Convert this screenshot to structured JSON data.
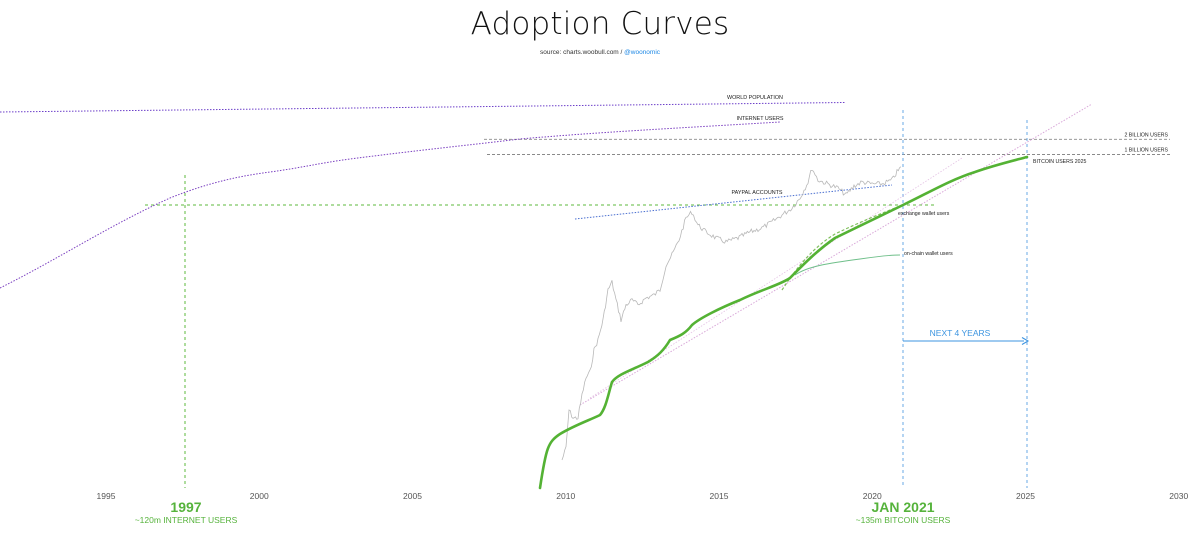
{
  "header": {
    "title": "Adoption Curves",
    "source_prefix": "source: charts.woobull.com / ",
    "source_handle": "@woonomic"
  },
  "colors": {
    "bitcoin_users": "#54b234",
    "world_population": "#6c3fc9",
    "internet_users": "#7a3fc0",
    "paypal": "#4a6fd0",
    "reference_guides": "#8a8a8a",
    "jan_2021_line": "#6aa9e6",
    "year_1997_line": "#5cb83e",
    "next_4_years": "#3d95e0",
    "btc_price": "#b8b8b8",
    "onchain": "#6fbf8a",
    "exchange_wallet": "#7dbf5a",
    "trend": "#d9a8d9"
  },
  "chart_data": {
    "type": "line",
    "xlabel": "",
    "ylabel": "",
    "x_ticks": [
      "1995",
      "2000",
      "2005",
      "2010",
      "2015",
      "2020",
      "2025",
      "2030"
    ],
    "xlim": [
      1993.5,
      2030
    ],
    "y_scale": "log",
    "grid": false,
    "series": [
      {
        "name": "WORLD POPULATION",
        "x": [
          1993.5,
          2019
        ],
        "y": [
          5600,
          7700
        ]
      },
      {
        "name": "INTERNET USERS",
        "x": [
          1993.5,
          1996,
          1998,
          2000,
          2003,
          2005,
          2008,
          2010,
          2012,
          2015,
          2018,
          2020
        ],
        "y": [
          40,
          95,
          170,
          300,
          460,
          620,
          900,
          1100,
          1400,
          1900,
          2500,
          3000
        ]
      },
      {
        "name": "PAYPAL ACCOUNTS",
        "x": [
          2010,
          2020
        ],
        "y": [
          60,
          150
        ]
      },
      {
        "name": "BITCOIN USERS 2025",
        "x": [
          2009,
          2009.5,
          2010,
          2011,
          2011.5,
          2012,
          2013,
          2014,
          2015,
          2016,
          2017,
          2018,
          2019,
          2020,
          2021,
          2022,
          2023,
          2024,
          2025
        ],
        "y": [
          0.002,
          0.01,
          0.03,
          0.05,
          0.3,
          0.45,
          0.9,
          1.6,
          2.6,
          3.8,
          6,
          12,
          22,
          38,
          135,
          300,
          520,
          800,
          1000
        ]
      },
      {
        "name": "exchange wallet users",
        "x": [
          2017.2,
          2017.8,
          2018.5,
          2019.5,
          2020.9
        ],
        "y": [
          5,
          10,
          14,
          22,
          40
        ]
      },
      {
        "name": "on-chain wallet users",
        "x": [
          2017.2,
          2018,
          2019,
          2020,
          2020.9
        ],
        "y": [
          4,
          7,
          9,
          11,
          13
        ]
      }
    ],
    "reference_lines": [
      {
        "label": "2 BILLION USERS",
        "y": 2000
      },
      {
        "label": "1 BILLION USERS",
        "y": 1000
      }
    ],
    "annotations": {
      "year_1997": "1997",
      "year_1997_sub": "~120m INTERNET USERS",
      "jan_2021": "JAN 2021",
      "jan_2021_sub": "~135m BITCOIN USERS",
      "next_4_years": "NEXT 4 YEARS"
    }
  }
}
